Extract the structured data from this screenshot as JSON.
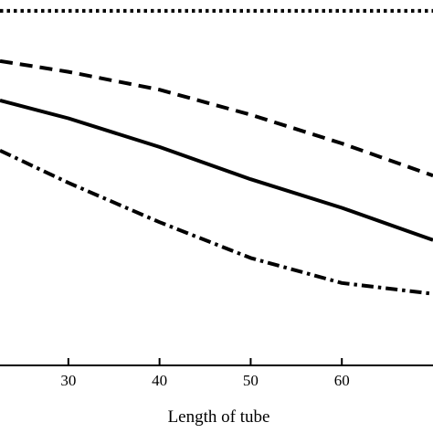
{
  "chart_data": {
    "type": "line",
    "title": "",
    "xlabel": "Length of tube",
    "ylabel": "",
    "xlim": [
      22.5,
      70
    ],
    "ylim": [
      0,
      1
    ],
    "xticks": [
      30,
      40,
      50,
      60
    ],
    "grid": false,
    "legend": "none",
    "series": [
      {
        "style": "dotted",
        "color": "#000000",
        "x": [
          22.5,
          30,
          40,
          50,
          60,
          70
        ],
        "y": [
          0.99,
          0.99,
          0.99,
          0.99,
          0.99,
          0.99
        ]
      },
      {
        "style": "dashed",
        "color": "#000000",
        "x": [
          22.5,
          30,
          40,
          50,
          60,
          70
        ],
        "y": [
          0.85,
          0.82,
          0.77,
          0.7,
          0.62,
          0.53
        ]
      },
      {
        "style": "solid",
        "color": "#000000",
        "x": [
          22.5,
          30,
          40,
          50,
          60,
          70
        ],
        "y": [
          0.74,
          0.69,
          0.61,
          0.52,
          0.44,
          0.35
        ]
      },
      {
        "style": "dash-dot",
        "color": "#000000",
        "x": [
          22.5,
          30,
          40,
          50,
          60,
          70
        ],
        "y": [
          0.6,
          0.51,
          0.4,
          0.3,
          0.23,
          0.2
        ]
      }
    ]
  }
}
